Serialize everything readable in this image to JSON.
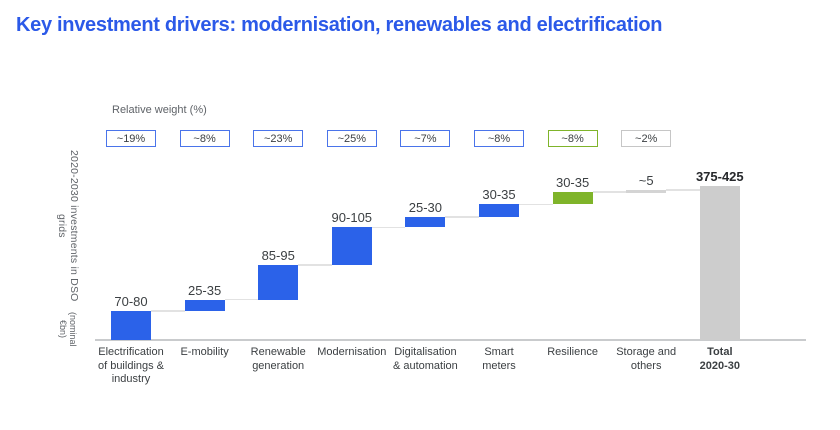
{
  "page": {
    "title": "Key investment drivers: modernisation, renewables and electrification"
  },
  "weights": {
    "label": "Relative weight (%)",
    "items": [
      {
        "value": "~19%",
        "variant": "blue"
      },
      {
        "value": "~8%",
        "variant": "blue"
      },
      {
        "value": "~23%",
        "variant": "blue"
      },
      {
        "value": "~25%",
        "variant": "blue"
      },
      {
        "value": "~7%",
        "variant": "blue"
      },
      {
        "value": "~8%",
        "variant": "blue"
      },
      {
        "value": "~8%",
        "variant": "green"
      },
      {
        "value": "~2%",
        "variant": "gray"
      }
    ]
  },
  "chart_data": {
    "type": "waterfall",
    "ylabel_line1": "2020-2030 investments in DSO grids",
    "ylabel_line2": "(nominal €bn)",
    "categories": [
      "Electrification\nof buildings &\nindustry",
      "E-mobility",
      "Renewable\ngeneration",
      "Modernisation",
      "Digitalisation\n& automation",
      "Smart\nmeters",
      "Resilience",
      "Storage and\nothers",
      "Total\n2020-30"
    ],
    "steps": [
      {
        "label": "70-80",
        "range": [
          70,
          80
        ],
        "variant": "blue",
        "is_total": false
      },
      {
        "label": "25-35",
        "range": [
          25,
          35
        ],
        "variant": "blue",
        "is_total": false
      },
      {
        "label": "85-95",
        "range": [
          85,
          95
        ],
        "variant": "blue",
        "is_total": false
      },
      {
        "label": "90-105",
        "range": [
          90,
          105
        ],
        "variant": "blue",
        "is_total": false
      },
      {
        "label": "25-30",
        "range": [
          25,
          30
        ],
        "variant": "blue",
        "is_total": false
      },
      {
        "label": "30-35",
        "range": [
          30,
          35
        ],
        "variant": "blue",
        "is_total": false
      },
      {
        "label": "30-35",
        "range": [
          30,
          35
        ],
        "variant": "green",
        "is_total": false
      },
      {
        "label": "~5",
        "range": [
          5,
          5
        ],
        "variant": "gray-thin",
        "is_total": false
      },
      {
        "label": "375-425",
        "range": [
          375,
          425
        ],
        "variant": "total",
        "is_total": true
      }
    ],
    "baseline_value": 0,
    "gridlines": false,
    "legend": null
  },
  "colors": {
    "title": "#2B59E8",
    "bar_blue": "#2B62E9",
    "bar_green": "#7FB42A",
    "bar_total": "#CDCDCD",
    "bar_gray_thin": "#D4D4D4",
    "border_blue": "#4A74EA",
    "border_green": "#7FB42A",
    "border_gray": "#C6C6C6",
    "connector": "#E2E2E2",
    "axis": "#C9CBCD",
    "text_dark": "#3C4043",
    "text_total": "#26282B",
    "text_gray": "#5F6368"
  }
}
